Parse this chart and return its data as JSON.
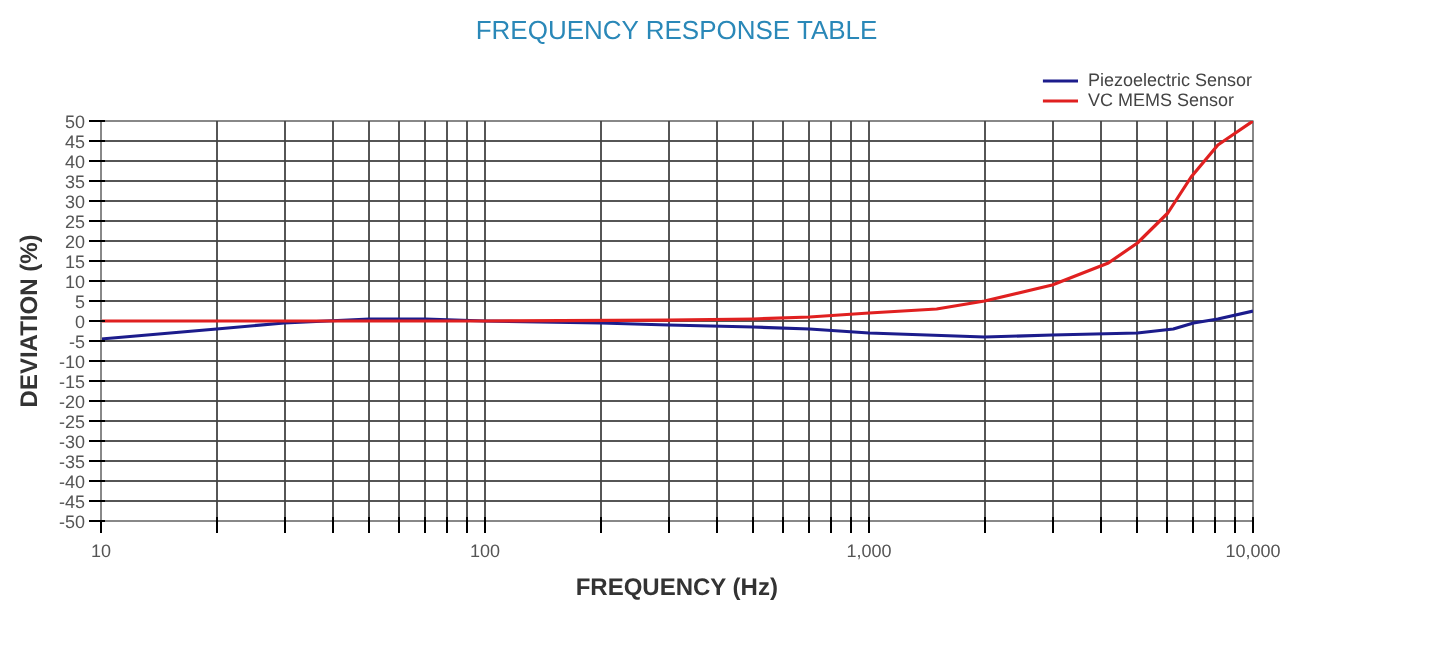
{
  "chart_data": {
    "type": "line",
    "title": "FREQUENCY RESPONSE TABLE",
    "xlabel": "FREQUENCY (Hz)",
    "ylabel": "DEVIATION (%)",
    "log": "x",
    "grid": true,
    "legend": "top right",
    "marker": "none",
    "line_style": "solid",
    "xlim": [
      10,
      10000
    ],
    "ylim": [
      -50,
      50
    ],
    "xticks": [
      10,
      {
        "value": 20,
        "label": null
      },
      {
        "value": 30,
        "label": null
      },
      {
        "value": 40,
        "label": null
      },
      {
        "value": 50,
        "label": null
      },
      {
        "value": 60,
        "label": null
      },
      {
        "value": 70,
        "label": null
      },
      {
        "value": 80,
        "label": null
      },
      {
        "value": 90,
        "label": null
      },
      100,
      {
        "value": 200,
        "label": null
      },
      {
        "value": 300,
        "label": null
      },
      {
        "value": 400,
        "label": null
      },
      {
        "value": 500,
        "label": null
      },
      {
        "value": 600,
        "label": null
      },
      {
        "value": 700,
        "label": null
      },
      {
        "value": 800,
        "label": null
      },
      {
        "value": 900,
        "label": null
      },
      {
        "value": 1000,
        "label": "1,000"
      },
      {
        "value": 2000,
        "label": null
      },
      {
        "value": 3000,
        "label": null
      },
      {
        "value": 4000,
        "label": null
      },
      {
        "value": 5000,
        "label": null
      },
      {
        "value": 6000,
        "label": null
      },
      {
        "value": 7000,
        "label": null
      },
      {
        "value": 8000,
        "label": null
      },
      {
        "value": 9000,
        "label": null
      },
      {
        "value": 10000,
        "label": "10,000"
      }
    ],
    "yticks": [
      -50,
      -45,
      -40,
      -35,
      -30,
      -25,
      -20,
      -15,
      -10,
      -5,
      0,
      5,
      10,
      15,
      20,
      25,
      30,
      35,
      40,
      45,
      50
    ],
    "series": [
      {
        "name": "Piezoelectric Sensor",
        "color": "#1c1c8c",
        "x": [
          10,
          20,
          30,
          50,
          70,
          100,
          200,
          300,
          500,
          700,
          1000,
          2000,
          3000,
          5000,
          6200,
          7000,
          8100,
          10000
        ],
        "values": [
          -4.5,
          -2,
          -0.5,
          0.5,
          0.5,
          0,
          -0.5,
          -1,
          -1.5,
          -2,
          -3,
          -4,
          -3.5,
          -3,
          -2,
          -0.5,
          0.5,
          2.5
        ]
      },
      {
        "name": "VC MEMS Sensor",
        "color": "#e02020",
        "x": [
          10,
          100,
          300,
          500,
          700,
          1000,
          1500,
          2000,
          3000,
          4200,
          5000,
          6000,
          6900,
          8100,
          9000,
          10000
        ],
        "values": [
          0,
          0,
          0.2,
          0.5,
          1,
          2,
          3,
          5,
          9,
          14.5,
          19.5,
          27,
          36,
          44,
          47,
          50
        ]
      }
    ]
  }
}
